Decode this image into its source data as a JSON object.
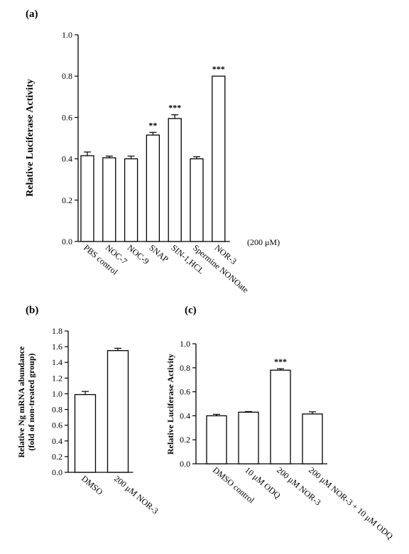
{
  "chart_data": [
    {
      "type": "bar",
      "panel": "(a)",
      "ylabel": "Relative Luciferase Activity",
      "ylim": [
        0,
        1.0
      ],
      "yticks": [
        "0.0",
        "0.2",
        "0.4",
        "0.6",
        "0.8",
        "1.0"
      ],
      "categories": [
        "PBS control",
        "NOC-7",
        "NOC-9",
        "SNAP",
        "SIN-1,HCL",
        "Spermine NONOate",
        "NOR-3"
      ],
      "values": [
        0.415,
        0.405,
        0.4,
        0.515,
        0.595,
        0.4,
        0.8
      ],
      "errors": [
        0.018,
        0.008,
        0.013,
        0.013,
        0.018,
        0.01,
        0.0
      ],
      "significance": [
        "",
        "",
        "",
        "**",
        "***",
        "",
        "***"
      ],
      "unit_note": "(200 μM)"
    },
    {
      "type": "bar",
      "panel": "(b)",
      "ylabel_lines": [
        "Relative Ng mRNA abundance",
        "(fold of non-treated group)"
      ],
      "ylim": [
        0,
        1.8
      ],
      "yticks": [
        "0.0",
        "0.2",
        "0.4",
        "0.6",
        "0.8",
        "1.0",
        "1.2",
        "1.4",
        "1.6",
        "1.8"
      ],
      "categories": [
        "DMSO",
        "200 μM NOR-3"
      ],
      "values": [
        0.99,
        1.55
      ],
      "errors": [
        0.04,
        0.03
      ],
      "significance": [
        "",
        ""
      ]
    },
    {
      "type": "bar",
      "panel": "(c)",
      "ylabel": "Relative Luciferase Activity",
      "ylim": [
        0,
        1.0
      ],
      "yticks": [
        "0.0",
        "0.2",
        "0.4",
        "0.6",
        "0.8",
        "1.0"
      ],
      "categories": [
        "DMSO control",
        "10 μM ODQ",
        "200 μM NOR-3",
        "200 μM NOR-3 + 10 μM ODQ"
      ],
      "values": [
        0.4,
        0.43,
        0.78,
        0.415
      ],
      "errors": [
        0.012,
        0.005,
        0.012,
        0.018
      ],
      "significance": [
        "",
        "",
        "***",
        ""
      ]
    }
  ]
}
